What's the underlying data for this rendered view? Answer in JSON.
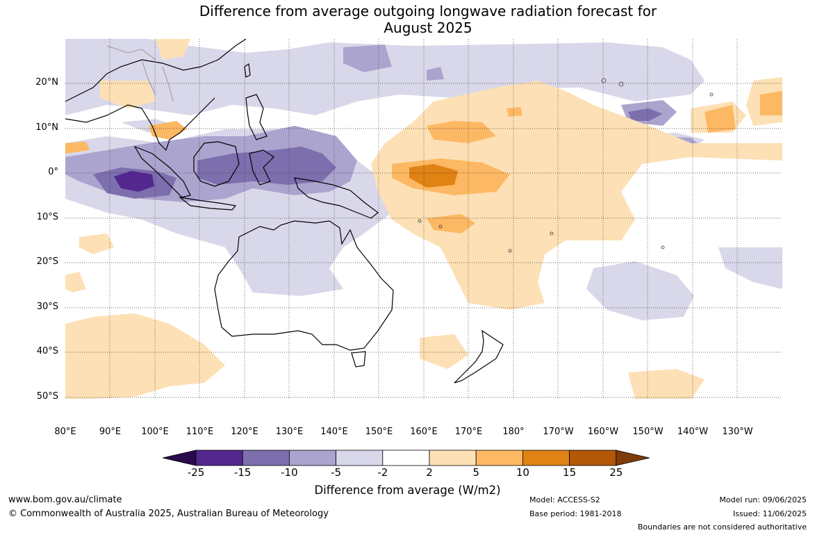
{
  "title_line1": "Difference from average outgoing longwave radiation forecast for",
  "title_line2": "August 2025",
  "lat_labels": [
    "20°N",
    "10°N",
    "0°",
    "10°S",
    "20°S",
    "30°S",
    "40°S",
    "50°S"
  ],
  "lon_labels": [
    "80°E",
    "90°E",
    "100°E",
    "110°E",
    "120°E",
    "130°E",
    "140°E",
    "150°E",
    "160°E",
    "170°E",
    "180°",
    "170°W",
    "160°W",
    "150°W",
    "140°W",
    "130°W"
  ],
  "colorbar": {
    "ticks": [
      "-25",
      "-15",
      "-10",
      "-5",
      "-2",
      "2",
      "5",
      "10",
      "15",
      "25"
    ],
    "colors": [
      "#2a0a4a",
      "#54278f",
      "#7d6eae",
      "#aba4ce",
      "#d9d8ea",
      "#ffffff",
      "#fde0b5",
      "#fdb863",
      "#e08214",
      "#b35806",
      "#7f3b08"
    ],
    "title": "Difference from average (W/m2)"
  },
  "footer": {
    "url": "www.bom.gov.au/climate",
    "copyright": "© Commonwealth of Australia 2025, Australian Bureau of Meteorology",
    "model": "Model: ACCESS-S2",
    "base_period": "Base period: 1981-2018",
    "model_run": "Model run: 09/06/2025",
    "issued": "Issued: 11/06/2025",
    "disclaimer": "Boundaries are not considered authoritative"
  }
}
